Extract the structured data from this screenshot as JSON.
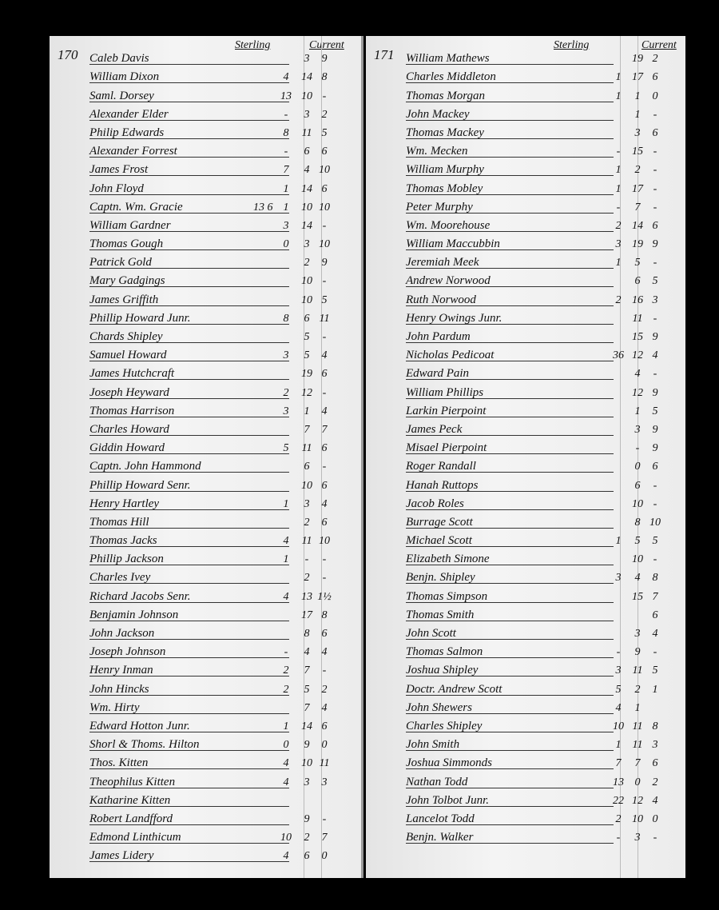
{
  "pages": [
    {
      "number": "170",
      "sterling_header": "Sterling",
      "current_header": "Current",
      "rows": [
        {
          "name": "Caleb Davis",
          "current": [
            "",
            "3",
            "9"
          ]
        },
        {
          "name": "William Dixon",
          "current": [
            "4",
            "14",
            "8"
          ]
        },
        {
          "name": "Saml. Dorsey",
          "current": [
            "13",
            "10",
            "-"
          ]
        },
        {
          "name": "Alexander Elder",
          "current": [
            "-",
            "3",
            "2"
          ]
        },
        {
          "name": "Philip Edwards",
          "current": [
            "8",
            "11",
            "5"
          ]
        },
        {
          "name": "Alexander Forrest",
          "current": [
            "-",
            "6",
            "6"
          ]
        },
        {
          "name": "James Frost",
          "current": [
            "7",
            "4",
            "10"
          ]
        },
        {
          "name": "John Floyd",
          "current": [
            "1",
            "14",
            "6"
          ]
        },
        {
          "name": "Captn. Wm. Gracie",
          "sterling": "13 6",
          "current": [
            "1",
            "10",
            "10"
          ]
        },
        {
          "name": "William Gardner",
          "current": [
            "3",
            "14",
            "-"
          ]
        },
        {
          "name": "Thomas Gough",
          "current": [
            "0",
            "3",
            "10"
          ]
        },
        {
          "name": "Patrick Gold",
          "current": [
            "",
            "2",
            "9"
          ]
        },
        {
          "name": "Mary Gadgings",
          "current": [
            "",
            "10",
            "-"
          ]
        },
        {
          "name": "James Griffith",
          "current": [
            "",
            "10",
            "5"
          ]
        },
        {
          "name": "Phillip Howard Junr.",
          "current": [
            "8",
            "6",
            "11"
          ]
        },
        {
          "name": "Chards Shipley",
          "current": [
            "",
            "5",
            "-"
          ]
        },
        {
          "name": "Samuel Howard",
          "current": [
            "3",
            "5",
            "4"
          ]
        },
        {
          "name": "James Hutchcraft",
          "current": [
            "",
            "19",
            "6"
          ]
        },
        {
          "name": "Joseph Heyward",
          "current": [
            "2",
            "12",
            "-"
          ]
        },
        {
          "name": "Thomas Harrison",
          "current": [
            "3",
            "1",
            "4"
          ]
        },
        {
          "name": "Charles Howard",
          "current": [
            "",
            "7",
            "7"
          ]
        },
        {
          "name": "Giddin Howard",
          "current": [
            "5",
            "11",
            "6"
          ]
        },
        {
          "name": "Captn. John Hammond",
          "current": [
            "",
            "6",
            "-"
          ]
        },
        {
          "name": "Phillip Howard Senr.",
          "current": [
            "",
            "10",
            "6"
          ]
        },
        {
          "name": "Henry Hartley",
          "current": [
            "1",
            "3",
            "4"
          ]
        },
        {
          "name": "Thomas Hill",
          "current": [
            "",
            "2",
            "6"
          ]
        },
        {
          "name": "Thomas Jacks",
          "current": [
            "4",
            "11",
            "10"
          ]
        },
        {
          "name": "Phillip Jackson",
          "current": [
            "1",
            "-",
            "-"
          ]
        },
        {
          "name": "Charles Ivey",
          "current": [
            "",
            "2",
            "-"
          ]
        },
        {
          "name": "Richard Jacobs Senr.",
          "current": [
            "4",
            "13",
            "1½"
          ]
        },
        {
          "name": "Benjamin Johnson",
          "current": [
            "",
            "17",
            "8"
          ]
        },
        {
          "name": "John Jackson",
          "current": [
            "",
            "8",
            "6"
          ]
        },
        {
          "name": "Joseph Johnson",
          "current": [
            "-",
            "4",
            "4"
          ]
        },
        {
          "name": "Henry Inman",
          "current": [
            "2",
            "7",
            "-"
          ]
        },
        {
          "name": "John Hincks",
          "current": [
            "2",
            "5",
            "2"
          ]
        },
        {
          "name": "Wm. Hirty",
          "current": [
            "",
            "7",
            "4"
          ]
        },
        {
          "name": "Edward Hotton Junr.",
          "current": [
            "1",
            "14",
            "6"
          ]
        },
        {
          "name": "Shorl & Thoms. Hilton",
          "current": [
            "0",
            "9",
            "0"
          ]
        },
        {
          "name": "Thos. Kitten",
          "current": [
            "4",
            "10",
            "11"
          ]
        },
        {
          "name": "Theophilus Kitten",
          "current": [
            "4",
            "3",
            "3"
          ]
        },
        {
          "name": "Katharine Kitten",
          "current": [
            "",
            "",
            ""
          ]
        },
        {
          "name": "Robert Landfford",
          "current": [
            "",
            "9",
            "-"
          ]
        },
        {
          "name": "Edmond Linthicum",
          "current": [
            "10",
            "2",
            "7"
          ]
        },
        {
          "name": "James Lidery",
          "current": [
            "4",
            "6",
            "0"
          ]
        }
      ]
    },
    {
      "number": "171",
      "sterling_header": "Sterling",
      "current_header": "Current",
      "rows": [
        {
          "name": "William Mathews",
          "current": [
            "",
            "19",
            "2"
          ]
        },
        {
          "name": "Charles Middleton",
          "current": [
            "1",
            "17",
            "6"
          ]
        },
        {
          "name": "Thomas Morgan",
          "current": [
            "1",
            "1",
            "0"
          ]
        },
        {
          "name": "John Mackey",
          "current": [
            "",
            "1",
            "-"
          ]
        },
        {
          "name": "Thomas Mackey",
          "current": [
            "",
            "3",
            "6"
          ]
        },
        {
          "name": "Wm. Mecken",
          "current": [
            "-",
            "15",
            "-"
          ]
        },
        {
          "name": "William Murphy",
          "current": [
            "1",
            "2",
            "-"
          ]
        },
        {
          "name": "Thomas Mobley",
          "current": [
            "1",
            "17",
            "-"
          ]
        },
        {
          "name": "Peter Murphy",
          "current": [
            "-",
            "7",
            "-"
          ]
        },
        {
          "name": "Wm. Moorehouse",
          "current": [
            "2",
            "14",
            "6"
          ]
        },
        {
          "name": "William Maccubbin",
          "current": [
            "3",
            "19",
            "9"
          ]
        },
        {
          "name": "Jeremiah Meek",
          "current": [
            "1",
            "5",
            "-"
          ]
        },
        {
          "name": "Andrew Norwood",
          "current": [
            "",
            "6",
            "5"
          ]
        },
        {
          "name": "Ruth Norwood",
          "current": [
            "2",
            "16",
            "3"
          ]
        },
        {
          "name": "Henry Owings Junr.",
          "current": [
            "",
            "11",
            "-"
          ]
        },
        {
          "name": "John Pardum",
          "current": [
            "",
            "15",
            "9"
          ]
        },
        {
          "name": "Nicholas Pedicoat",
          "current": [
            "36",
            "12",
            "4"
          ]
        },
        {
          "name": "Edward Pain",
          "current": [
            "",
            "4",
            "-"
          ]
        },
        {
          "name": "William Phillips",
          "current": [
            "",
            "12",
            "9"
          ]
        },
        {
          "name": "Larkin Pierpoint",
          "current": [
            "",
            "1",
            "5"
          ]
        },
        {
          "name": "James Peck",
          "current": [
            "",
            "3",
            "9"
          ]
        },
        {
          "name": "Misael Pierpoint",
          "current": [
            "",
            "-",
            "9"
          ]
        },
        {
          "name": "Roger Randall",
          "current": [
            "",
            "0",
            "6"
          ]
        },
        {
          "name": "Hanah Ruttops",
          "current": [
            "",
            "6",
            "-"
          ]
        },
        {
          "name": "Jacob Roles",
          "current": [
            "",
            "10",
            "-"
          ]
        },
        {
          "name": "Burrage Scott",
          "current": [
            "",
            "8",
            "10"
          ]
        },
        {
          "name": "Michael Scott",
          "current": [
            "1",
            "5",
            "5"
          ]
        },
        {
          "name": "Elizabeth Simone",
          "current": [
            "",
            "10",
            "-"
          ]
        },
        {
          "name": "Benjn. Shipley",
          "current": [
            "3",
            "4",
            "8"
          ]
        },
        {
          "name": "Thomas Simpson",
          "current": [
            "",
            "15",
            "7"
          ]
        },
        {
          "name": "Thomas Smith",
          "current": [
            "",
            "",
            "6"
          ]
        },
        {
          "name": "John Scott",
          "current": [
            "",
            "3",
            "4"
          ]
        },
        {
          "name": "Thomas Salmon",
          "current": [
            "-",
            "9",
            "-"
          ]
        },
        {
          "name": "Joshua Shipley",
          "current": [
            "3",
            "11",
            "5"
          ]
        },
        {
          "name": "Doctr. Andrew Scott",
          "current": [
            "5",
            "2",
            "1"
          ]
        },
        {
          "name": "John Shewers",
          "current": [
            "4",
            "1",
            ""
          ]
        },
        {
          "name": "Charles Shipley",
          "current": [
            "10",
            "11",
            "8"
          ]
        },
        {
          "name": "John Smith",
          "current": [
            "1",
            "11",
            "3"
          ]
        },
        {
          "name": "Joshua Simmonds",
          "current": [
            "7",
            "7",
            "6"
          ]
        },
        {
          "name": "Nathan Todd",
          "current": [
            "13",
            "0",
            "2"
          ]
        },
        {
          "name": "John Tolbot Junr.",
          "current": [
            "22",
            "12",
            "4"
          ]
        },
        {
          "name": "Lancelot Todd",
          "current": [
            "2",
            "10",
            "0"
          ]
        },
        {
          "name": "Benjn. Walker",
          "current": [
            "-",
            "3",
            "-"
          ]
        }
      ]
    }
  ]
}
